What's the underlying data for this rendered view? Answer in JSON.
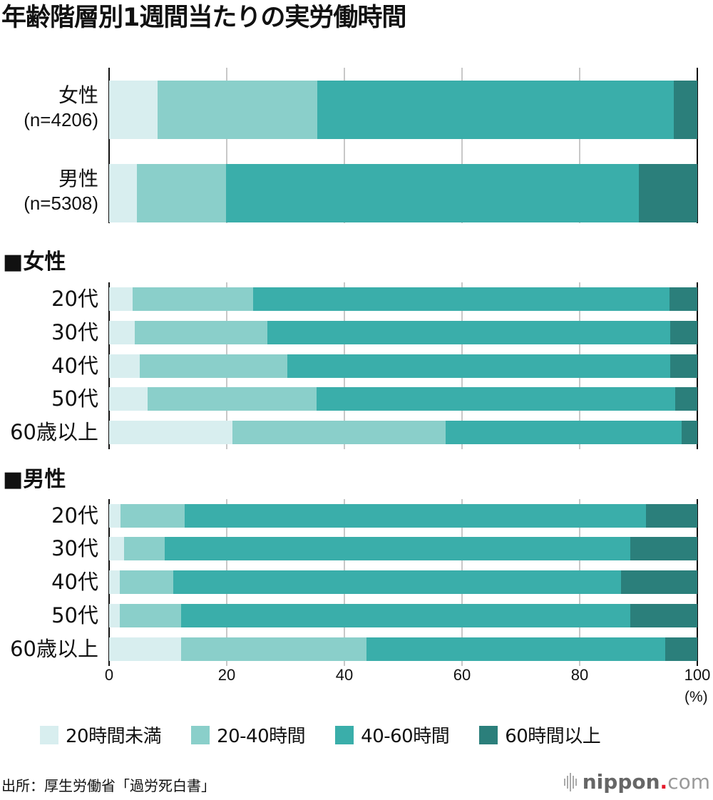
{
  "title": "年齢階層別1週間当たりの実労働時間",
  "colors": {
    "under20": "#d8eeef",
    "20to40": "#8acfca",
    "40to60": "#3aaeaa",
    "over60": "#2b7f7b",
    "axis": "#111111",
    "grid": "#c8c8c8"
  },
  "legend": [
    {
      "label": "20時間未満",
      "color": "#d8eeef"
    },
    {
      "label": "20-40時間",
      "color": "#8acfca"
    },
    {
      "label": "40-60時間",
      "color": "#3aaeaa"
    },
    {
      "label": "60時間以上",
      "color": "#2b7f7b"
    }
  ],
  "overall": [
    {
      "label": "女性",
      "n": "(n=4206)"
    },
    {
      "label": "男性",
      "n": "(n=5308)"
    }
  ],
  "sections": [
    {
      "heading": "■女性",
      "rows": [
        "20代",
        "30代",
        "40代",
        "50代",
        "60歳以上"
      ]
    },
    {
      "heading": "■男性",
      "rows": [
        "20代",
        "30代",
        "40代",
        "50代",
        "60歳以上"
      ]
    }
  ],
  "x_axis": {
    "ticks": [
      "0",
      "20",
      "40",
      "60",
      "80",
      "100"
    ],
    "unit": "(%)"
  },
  "source": "出所：厚生労働省「過労死白書」",
  "logo": {
    "name": "nippon",
    "dot": ".",
    "suffix": "com"
  },
  "chart_data": {
    "type": "bar",
    "orientation": "horizontal",
    "stacked": true,
    "title": "年齢階層別1週間当たりの実労働時間",
    "xlabel": "(%)",
    "ylabel": "",
    "xlim": [
      0,
      100
    ],
    "x_ticks": [
      0,
      20,
      40,
      60,
      80,
      100
    ],
    "grid": true,
    "legend_position": "bottom",
    "categories": [
      "女性 (n=4206)",
      "男性 (n=5308)",
      "女性 20代",
      "女性 30代",
      "女性 40代",
      "女性 50代",
      "女性 60歳以上",
      "男性 20代",
      "男性 30代",
      "男性 40代",
      "男性 50代",
      "男性 60歳以上"
    ],
    "series": [
      {
        "name": "20時間未満",
        "values": [
          8.3,
          4.7,
          4.0,
          4.4,
          5.2,
          6.5,
          21.0,
          1.9,
          2.6,
          1.8,
          1.8,
          12.3
        ]
      },
      {
        "name": "20-40時間",
        "values": [
          27.1,
          15.2,
          20.5,
          22.5,
          25.1,
          28.8,
          36.2,
          10.9,
          6.9,
          9.1,
          10.5,
          31.5
        ]
      },
      {
        "name": "40-60時間",
        "values": [
          60.6,
          70.2,
          70.8,
          68.5,
          65.1,
          60.9,
          40.1,
          78.5,
          79.1,
          76.1,
          76.3,
          50.7
        ]
      },
      {
        "name": "60時間以上",
        "values": [
          4.0,
          9.9,
          4.7,
          4.6,
          4.6,
          3.8,
          2.7,
          8.7,
          11.4,
          13.0,
          11.4,
          5.5
        ]
      }
    ],
    "source": "出所：厚生労働省「過労死白書」"
  }
}
